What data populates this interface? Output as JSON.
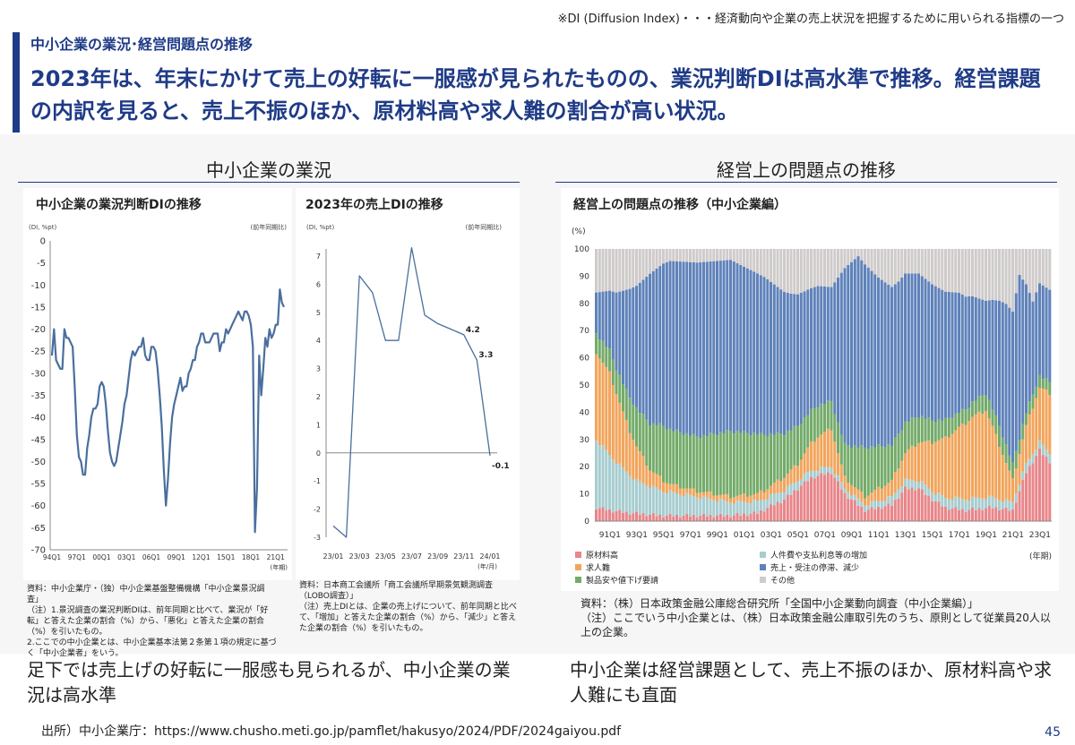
{
  "note": "※DI (Diffusion Index)・・・経済動向や企業の売上状況を把握するために用いられる指標の一つ",
  "subtitle": "中小企業の業況･経営問題点の推移",
  "headline": "2023年は、年末にかけて売上の好転に一服感が見られたものの、業況判断DIは高水準で推移。経営課題の内訳を見ると、売上不振のほか、原材料高や求人難の割合が高い状況。",
  "left_section": {
    "title": "中小企業の業況",
    "bottom_text": "足下では売上げの好転に一服感も見られるが、中小企業の業況は高水準"
  },
  "right_section": {
    "title": "経営上の問題点の推移",
    "bottom_text": "中小企業は経営課題として、売上不振のほか、原材料高や求人難にも直面"
  },
  "source_left": "資料：中小企業庁・（独）中小企業基盤整備機構「中小企業景況調査」\n（注）1.景況調査の業況判断DIは、前年同期と比べて、業況が「好転」と答えた企業の割合（%）から、「悪化」と答えた企業の割合（%）を引いたもの。\n2.ここでの中小企業とは、中小企業基本法第２条第１項の規定に基づく「中小企業者」をいう。",
  "source_mid": "資料：日本商工会議所「商工会議所早期景気観測調査（LOBO調査）」\n（注）売上DIとは、企業の売上げについて、前年同期と比べて、「増加」と答えた企業の割合（%）から、「減少」と答えた企業の割合（%）を引いたもの。",
  "source_right": "資料：（株）日本政策金融公庫総合研究所「全国中小企業動向調査（中小企業編）」\n（注）ここでいう中小企業とは、（株）日本政策金融公庫取引先のうち、原則として従業員20人以上の企業。",
  "footer": "出所）中小企業庁：https://www.chusho.meti.go.jp/pamflet/hakusyo/2024/PDF/2024gaiyou.pdf",
  "page_number": "45",
  "colors": {
    "navy": "#1f3b87",
    "line": "#4a6f9e",
    "raw_material": "#e8868a",
    "labor_cost": "#a7cdd0",
    "hiring": "#f2a55c",
    "sales": "#5f82ba",
    "price_drop": "#74ab69",
    "other": "#cfcbcb"
  },
  "chart_data": [
    {
      "type": "line",
      "title": "中小企業の業況判断DIの推移",
      "unit_label": "(DI, %pt)",
      "note_label": "(前年同期比)",
      "xlabel": "(年期)",
      "ylim": [
        -70,
        0
      ],
      "yticks": [
        0,
        -5,
        -10,
        -15,
        -20,
        -25,
        -30,
        -35,
        -40,
        -45,
        -50,
        -55,
        -60,
        -65,
        -70
      ],
      "x_tick_labels": [
        "94Q1",
        "97Q1",
        "00Q1",
        "03Q1",
        "06Q1",
        "09Q1",
        "12Q1",
        "15Q1",
        "18Q1",
        "21Q1"
      ],
      "x_start": "1994Q1",
      "values": [
        -26,
        -20,
        -27,
        -28,
        -29,
        -29,
        -20,
        -22,
        -22,
        -23,
        -24,
        -33,
        -44,
        -49,
        -50,
        -53,
        -53,
        -47,
        -44,
        -40,
        -38,
        -38,
        -37,
        -33,
        -32,
        -33,
        -37,
        -43,
        -48,
        -50,
        -51,
        -50,
        -47,
        -44,
        -41,
        -37,
        -35,
        -31,
        -27,
        -25,
        -26,
        -25,
        -24,
        -24,
        -22,
        -26,
        -27,
        -27,
        -24,
        -24,
        -25,
        -29,
        -35,
        -42,
        -52,
        -60,
        -54,
        -46,
        -40,
        -37,
        -35,
        -33,
        -31,
        -34,
        -33,
        -33,
        -30,
        -29,
        -27,
        -27,
        -24,
        -23,
        -21,
        -21,
        -23,
        -23,
        -23,
        -22,
        -21,
        -21,
        -21,
        -25,
        -23,
        -23,
        -20,
        -21,
        -20,
        -19,
        -18,
        -17,
        -16,
        -17,
        -18,
        -16,
        -16,
        -17,
        -19,
        -24,
        -66,
        -56,
        -26,
        -35,
        -29,
        -22,
        -24,
        -20,
        -22,
        -21,
        -19,
        -19,
        -11,
        -14,
        -15
      ]
    },
    {
      "type": "line",
      "title": "2023年の売上DIの推移",
      "unit_label": "(DI, %pt)",
      "note_label": "(前年同期比)",
      "xlabel": "(年/月)",
      "ylim": [
        -3,
        7
      ],
      "yticks": [
        7,
        6,
        5,
        4,
        3,
        2,
        1,
        0,
        -1,
        -2,
        -3
      ],
      "x_tick_labels": [
        "23/01",
        "23/03",
        "23/05",
        "23/07",
        "23/09",
        "23/11",
        "24/01"
      ],
      "x": [
        "23/01",
        "23/02",
        "23/03",
        "23/04",
        "23/05",
        "23/06",
        "23/07",
        "23/08",
        "23/09",
        "23/10",
        "23/11",
        "23/12",
        "24/01"
      ],
      "values": [
        -2.6,
        -3.0,
        6.3,
        5.7,
        4.0,
        4.0,
        7.3,
        4.9,
        4.6,
        4.4,
        4.2,
        3.3,
        -0.1
      ],
      "data_labels": {
        "10": "4.2",
        "11": "3.3",
        "12": "-0.1"
      }
    },
    {
      "type": "bar",
      "stacked": true,
      "title": "経営上の問題点の推移（中小企業編）",
      "unit_label": "(%)",
      "xlabel": "(年期)",
      "ylim": [
        0,
        100
      ],
      "yticks": [
        0,
        10,
        20,
        30,
        40,
        50,
        60,
        70,
        80,
        90,
        100
      ],
      "x_tick_labels": [
        "91Q1",
        "93Q1",
        "95Q1",
        "97Q1",
        "99Q1",
        "01Q1",
        "03Q1",
        "05Q1",
        "07Q1",
        "09Q1",
        "11Q1",
        "13Q1",
        "15Q1",
        "17Q1",
        "19Q1",
        "21Q1",
        "23Q1"
      ],
      "x_start": "1990Q1",
      "bar_count": 136,
      "series": [
        {
          "name": "原材料高",
          "key": "raw_material",
          "keypoints": [
            [
              0,
              5
            ],
            [
              4,
              4
            ],
            [
              10,
              3
            ],
            [
              20,
              2
            ],
            [
              30,
              2
            ],
            [
              40,
              2
            ],
            [
              48,
              3
            ],
            [
              56,
              8
            ],
            [
              64,
              16
            ],
            [
              70,
              18
            ],
            [
              74,
              10
            ],
            [
              80,
              4
            ],
            [
              88,
              6
            ],
            [
              92,
              12
            ],
            [
              96,
              12
            ],
            [
              100,
              8
            ],
            [
              104,
              5
            ],
            [
              110,
              4
            ],
            [
              118,
              5
            ],
            [
              124,
              4
            ],
            [
              128,
              18
            ],
            [
              132,
              26
            ],
            [
              135,
              22
            ]
          ]
        },
        {
          "name": "人件費や支払利息等の増加",
          "key": "labor_cost",
          "keypoints": [
            [
              0,
              25
            ],
            [
              6,
              18
            ],
            [
              12,
              12
            ],
            [
              20,
              9
            ],
            [
              30,
              7
            ],
            [
              40,
              5
            ],
            [
              50,
              4
            ],
            [
              60,
              3
            ],
            [
              70,
              2
            ],
            [
              80,
              2
            ],
            [
              90,
              3
            ],
            [
              100,
              3
            ],
            [
              108,
              4
            ],
            [
              116,
              4
            ],
            [
              122,
              3
            ],
            [
              128,
              3
            ],
            [
              135,
              3
            ]
          ]
        },
        {
          "name": "求人難",
          "key": "hiring",
          "keypoints": [
            [
              0,
              32
            ],
            [
              4,
              30
            ],
            [
              10,
              16
            ],
            [
              16,
              6
            ],
            [
              22,
              3
            ],
            [
              30,
              2
            ],
            [
              40,
              2
            ],
            [
              50,
              3
            ],
            [
              60,
              6
            ],
            [
              66,
              12
            ],
            [
              70,
              14
            ],
            [
              74,
              4
            ],
            [
              80,
              3
            ],
            [
              88,
              6
            ],
            [
              96,
              14
            ],
            [
              104,
              22
            ],
            [
              112,
              30
            ],
            [
              116,
              32
            ],
            [
              120,
              20
            ],
            [
              124,
              8
            ],
            [
              128,
              14
            ],
            [
              132,
              20
            ],
            [
              135,
              22
            ]
          ]
        },
        {
          "name": "製品安や値下げ要請",
          "key": "price_drop",
          "keypoints": [
            [
              0,
              7
            ],
            [
              6,
              9
            ],
            [
              12,
              14
            ],
            [
              20,
              20
            ],
            [
              30,
              20
            ],
            [
              40,
              24
            ],
            [
              48,
              22
            ],
            [
              56,
              16
            ],
            [
              64,
              12
            ],
            [
              70,
              10
            ],
            [
              74,
              12
            ],
            [
              80,
              18
            ],
            [
              90,
              12
            ],
            [
              100,
              8
            ],
            [
              110,
              5
            ],
            [
              120,
              7
            ],
            [
              128,
              5
            ],
            [
              135,
              4
            ]
          ]
        },
        {
          "name": "売上・受注の停滞、減少",
          "key": "sales",
          "keypoints": [
            [
              0,
              15
            ],
            [
              4,
              22
            ],
            [
              10,
              40
            ],
            [
              16,
              55
            ],
            [
              22,
              62
            ],
            [
              30,
              64
            ],
            [
              40,
              63
            ],
            [
              50,
              58
            ],
            [
              58,
              50
            ],
            [
              64,
              45
            ],
            [
              70,
              42
            ],
            [
              74,
              65
            ],
            [
              78,
              70
            ],
            [
              84,
              62
            ],
            [
              90,
              56
            ],
            [
              100,
              50
            ],
            [
              108,
              44
            ],
            [
              116,
              34
            ],
            [
              122,
              52
            ],
            [
              126,
              60
            ],
            [
              130,
              34
            ],
            [
              135,
              34
            ]
          ]
        },
        {
          "name": "その他",
          "key": "other"
        }
      ]
    }
  ]
}
